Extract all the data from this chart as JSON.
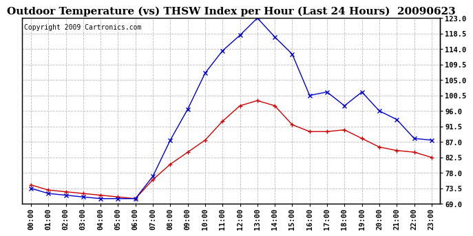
{
  "title": "Outdoor Temperature (vs) THSW Index per Hour (Last 24 Hours)  20090623",
  "copyright": "Copyright 2009 Cartronics.com",
  "hours": [
    "00:00",
    "01:00",
    "02:00",
    "03:00",
    "04:00",
    "05:00",
    "06:00",
    "07:00",
    "08:00",
    "09:00",
    "10:00",
    "11:00",
    "12:00",
    "13:00",
    "14:00",
    "15:00",
    "16:00",
    "17:00",
    "18:00",
    "19:00",
    "20:00",
    "21:00",
    "22:00",
    "23:00"
  ],
  "temp": [
    74.5,
    73.0,
    72.5,
    72.0,
    71.5,
    71.0,
    70.5,
    76.0,
    80.5,
    84.0,
    87.5,
    93.0,
    97.5,
    99.0,
    97.5,
    92.0,
    90.0,
    90.0,
    90.5,
    88.0,
    85.5,
    84.5,
    84.0,
    82.5
  ],
  "thsw": [
    73.5,
    72.0,
    71.5,
    71.0,
    70.5,
    70.5,
    70.5,
    77.0,
    87.5,
    96.5,
    107.0,
    113.5,
    118.0,
    123.0,
    117.5,
    112.5,
    100.5,
    101.5,
    97.5,
    101.5,
    96.0,
    93.5,
    88.0,
    87.5
  ],
  "temp_color": "#cc0000",
  "thsw_color": "#0000cc",
  "bg_color": "#ffffff",
  "grid_color": "#bbbbbb",
  "ymin": 69.0,
  "ymax": 123.0,
  "yticks": [
    69.0,
    73.5,
    78.0,
    82.5,
    87.0,
    91.5,
    96.0,
    100.5,
    105.0,
    109.5,
    114.0,
    118.5,
    123.0
  ],
  "title_fontsize": 11,
  "copyright_fontsize": 7
}
